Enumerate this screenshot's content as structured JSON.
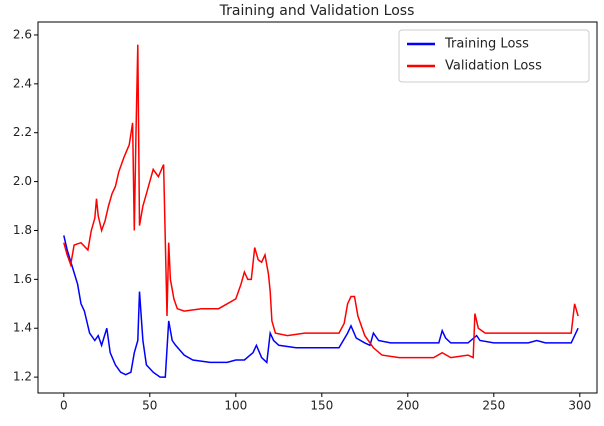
{
  "chart_data": {
    "type": "line",
    "title": "Training and Validation Loss",
    "xlim": [
      -15,
      310
    ],
    "xticks": [
      0,
      50,
      100,
      150,
      200,
      250,
      300
    ],
    "ylim": [
      1.135,
      2.653
    ],
    "yticks": [
      1.2,
      1.4,
      1.6,
      1.8,
      {
        "value": 2,
        "label": "2.0"
      },
      2.2,
      2.4,
      2.6
    ],
    "grid": false,
    "legend": "upper right",
    "series": [
      {
        "name": "Training Loss",
        "color": "#0000ff",
        "x": [
          0,
          2,
          5,
          8,
          10,
          12,
          15,
          18,
          20,
          22,
          25,
          27,
          30,
          33,
          36,
          39,
          41,
          43,
          44,
          46,
          48,
          52,
          56,
          59,
          61,
          63,
          65,
          70,
          75,
          85,
          95,
          100,
          105,
          110,
          112,
          115,
          118,
          120,
          122,
          125,
          135,
          150,
          160,
          165,
          167,
          170,
          175,
          178,
          180,
          183,
          190,
          200,
          210,
          218,
          220,
          222,
          225,
          235,
          240,
          242,
          250,
          270,
          275,
          280,
          295,
          299
        ],
        "values": [
          1.78,
          1.72,
          1.65,
          1.58,
          1.5,
          1.47,
          1.38,
          1.35,
          1.37,
          1.33,
          1.4,
          1.3,
          1.25,
          1.22,
          1.21,
          1.22,
          1.3,
          1.35,
          1.55,
          1.35,
          1.25,
          1.22,
          1.2,
          1.2,
          1.43,
          1.35,
          1.33,
          1.29,
          1.27,
          1.26,
          1.26,
          1.27,
          1.27,
          1.3,
          1.33,
          1.28,
          1.26,
          1.38,
          1.35,
          1.33,
          1.32,
          1.32,
          1.32,
          1.38,
          1.41,
          1.36,
          1.34,
          1.33,
          1.38,
          1.35,
          1.34,
          1.34,
          1.34,
          1.34,
          1.39,
          1.36,
          1.34,
          1.34,
          1.37,
          1.35,
          1.34,
          1.34,
          1.35,
          1.34,
          1.34,
          1.4
        ]
      },
      {
        "name": "Validation Loss",
        "color": "#ff0000",
        "x": [
          0,
          2,
          4,
          6,
          10,
          14,
          16,
          18,
          19,
          20,
          22,
          24,
          26,
          28,
          30,
          32,
          35,
          38,
          40,
          41,
          42,
          43,
          44,
          46,
          48,
          50,
          52,
          55,
          58,
          60,
          61,
          62,
          64,
          66,
          70,
          80,
          90,
          95,
          100,
          103,
          105,
          107,
          109,
          111,
          113,
          115,
          117,
          119,
          120,
          121,
          123,
          130,
          140,
          150,
          160,
          163,
          165,
          167,
          169,
          171,
          175,
          178,
          180,
          185,
          195,
          205,
          215,
          220,
          225,
          235,
          238,
          239,
          241,
          245,
          255,
          265,
          275,
          285,
          295,
          297,
          299
        ],
        "values": [
          1.75,
          1.7,
          1.66,
          1.74,
          1.75,
          1.72,
          1.8,
          1.85,
          1.93,
          1.86,
          1.8,
          1.84,
          1.9,
          1.95,
          1.98,
          2.04,
          2.1,
          2.15,
          2.24,
          1.8,
          2.2,
          2.56,
          1.82,
          1.9,
          1.95,
          2.0,
          2.05,
          2.02,
          2.07,
          1.45,
          1.75,
          1.6,
          1.52,
          1.48,
          1.47,
          1.48,
          1.48,
          1.5,
          1.52,
          1.58,
          1.63,
          1.6,
          1.6,
          1.73,
          1.68,
          1.67,
          1.7,
          1.62,
          1.55,
          1.43,
          1.38,
          1.37,
          1.38,
          1.38,
          1.38,
          1.42,
          1.5,
          1.53,
          1.53,
          1.45,
          1.37,
          1.34,
          1.32,
          1.29,
          1.28,
          1.28,
          1.28,
          1.3,
          1.28,
          1.29,
          1.28,
          1.46,
          1.4,
          1.38,
          1.38,
          1.38,
          1.38,
          1.38,
          1.38,
          1.5,
          1.45
        ]
      }
    ]
  }
}
